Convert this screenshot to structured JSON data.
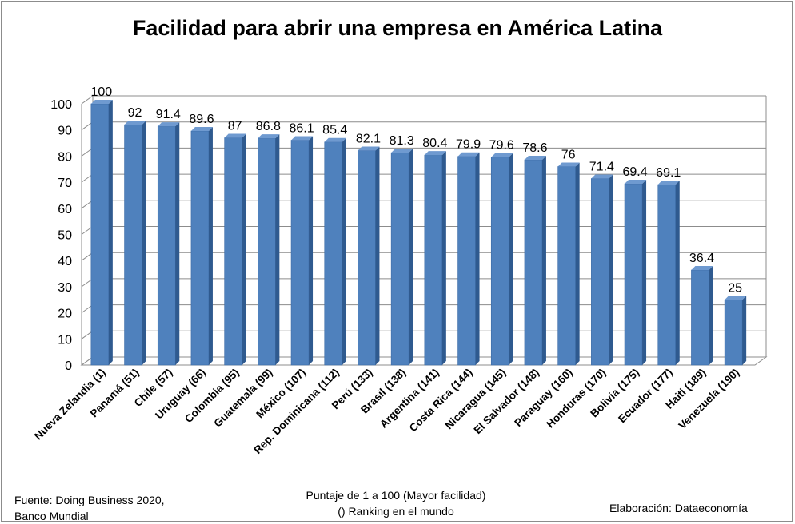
{
  "chart_data": {
    "type": "bar",
    "title": "Facilidad para abrir una empresa en América Latina",
    "subtitle_lines": [
      "Puntaje de 1 a 100 (Mayor facilidad)",
      "() Ranking en el mundo"
    ],
    "categories": [
      "Nueva Zelandia (1)",
      "Panamá (51)",
      "Chile (57)",
      "Uruguay (66)",
      "Colombia (95)",
      "Guatemala (99)",
      "México (107)",
      "Rep. Dominicana (112)",
      "Perú (133)",
      "Brasil (138)",
      "Argentina (141)",
      "Costa Rica (144)",
      "Nicaragua (145)",
      "El Salvador (148)",
      "Paraguay (160)",
      "Honduras (170)",
      "Bolivia (175)",
      "Ecuador (177)",
      "Haiti (189)",
      "Venezuela (190)"
    ],
    "values": [
      100,
      92,
      91.4,
      89.6,
      87,
      86.8,
      86.1,
      85.4,
      82.1,
      81.3,
      80.4,
      79.9,
      79.6,
      78.6,
      76,
      71.4,
      69.4,
      69.1,
      36.4,
      25
    ],
    "value_labels": [
      "100",
      "92",
      "91.4",
      "89.6",
      "87",
      "86.8",
      "86.1",
      "85.4",
      "82.1",
      "81.3",
      "80.4",
      "79.9",
      "79.6",
      "78.6",
      "76",
      "71.4",
      "69.4",
      "69.1",
      "36.4",
      "25"
    ],
    "ylim": [
      0,
      100
    ],
    "yticks": [
      0,
      10,
      20,
      30,
      40,
      50,
      60,
      70,
      80,
      90,
      100
    ],
    "grid": true,
    "bar_color": "#4f81bd",
    "bar_top_color": "#6f9ad0",
    "bar_side_color": "#2f5a8f",
    "xlabel": "",
    "ylabel": ""
  },
  "footer": {
    "source_line1": "Fuente: Doing Business 2020,",
    "source_line2": "Banco Mundial",
    "credit": "Elaboración: Dataeconomía"
  }
}
